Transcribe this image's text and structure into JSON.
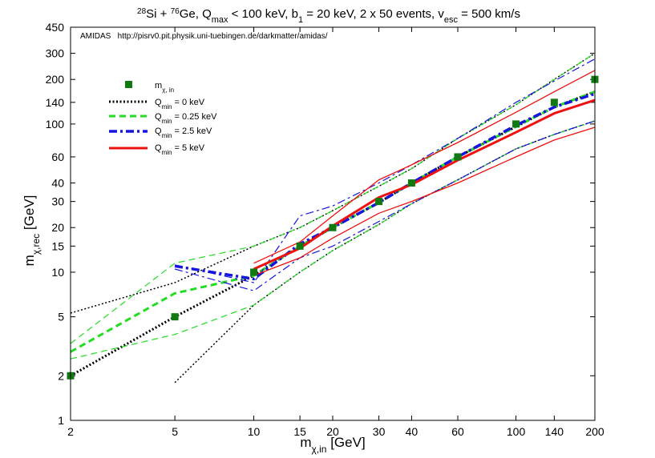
{
  "chart_data": {
    "type": "line",
    "title": {
      "iso1_mass": "28",
      "iso1_sym": "Si + ",
      "iso2_mass": "76",
      "iso2_sym": "Ge, Q",
      "qmax_sub": "max",
      "qmax_rest": " < 100 keV, b",
      "b_sub": "1",
      "b_rest": " = 20 keV, 2 x 50 events, v",
      "vesc_sub": "esc",
      "vesc_rest": " = 500 km/s"
    },
    "note": "AMIDAS   http://pisrv0.pit.physik.uni-tuebingen.de/darkmatter/amidas/",
    "xlabel": {
      "main": "m",
      "sub": "χ,in",
      "rest": " [GeV]"
    },
    "ylabel": {
      "main": "m",
      "sub": "χ,rec",
      "rest": " [GeV]"
    },
    "xscale": "log",
    "yscale": "log",
    "xlim": [
      2,
      200
    ],
    "ylim": [
      1,
      450
    ],
    "xticks": [
      2,
      5,
      10,
      15,
      20,
      30,
      40,
      60,
      100,
      140,
      200
    ],
    "xtick_labels": [
      "2",
      "5",
      "10",
      "15",
      "20",
      "30",
      "40",
      "60",
      "100",
      "140",
      "200"
    ],
    "yticks": [
      1,
      2,
      5,
      10,
      15,
      20,
      30,
      40,
      60,
      100,
      140,
      200,
      300,
      450
    ],
    "ytick_labels": [
      "1",
      "2",
      "5",
      "10",
      "15",
      "20",
      "30",
      "40",
      "60",
      "100",
      "140",
      "200",
      "300",
      "450"
    ],
    "legend_position": "top-left",
    "legend": [
      {
        "main": "m",
        "sub": "χ, in",
        "rest": ""
      },
      {
        "main": "Q",
        "sub": "min",
        "rest": " = 0 keV"
      },
      {
        "main": "Q",
        "sub": "min",
        "rest": " = 0.25 keV"
      },
      {
        "main": "Q",
        "sub": "min",
        "rest": " = 2.5 keV"
      },
      {
        "main": "Q",
        "sub": "min",
        "rest": " = 5 keV"
      }
    ],
    "input_points": {
      "color": "#107a10",
      "x": [
        2,
        5,
        10,
        15,
        20,
        30,
        40,
        60,
        100,
        140,
        200
      ],
      "y": [
        2,
        5,
        10,
        15,
        20,
        30,
        40,
        60,
        100,
        140,
        200
      ]
    },
    "series": [
      {
        "style": "dotted",
        "color": "#000000",
        "x": [
          2,
          5,
          10,
          15,
          20,
          30,
          40,
          60,
          100,
          140,
          200
        ],
        "median": [
          2,
          5,
          9.5,
          15,
          20,
          29.5,
          40,
          60,
          96,
          130,
          165
        ],
        "upper": [
          5.3,
          8.5,
          15,
          20,
          26,
          38,
          50,
          80,
          135,
          200,
          300
        ],
        "lower": [
          null,
          1.8,
          6,
          10,
          14,
          21,
          29,
          42,
          68,
          85,
          105
        ]
      },
      {
        "style": "dashed",
        "color": "#22dd22",
        "x": [
          2,
          5,
          10,
          15,
          20,
          30,
          40,
          60,
          100,
          140,
          200
        ],
        "median": [
          2.9,
          7.2,
          9.5,
          15,
          20,
          29.5,
          40,
          60,
          96,
          130,
          165
        ],
        "upper": [
          3.3,
          11.5,
          15,
          20,
          26,
          38,
          50,
          80,
          135,
          200,
          300
        ],
        "lower": [
          2.6,
          3.8,
          6,
          10,
          14,
          21,
          29,
          42,
          68,
          85,
          105
        ]
      },
      {
        "style": "dash-dot",
        "color": "#1515dd",
        "x": [
          5,
          10,
          15,
          20,
          30,
          40,
          60,
          100,
          140,
          200
        ],
        "median": [
          11,
          9,
          15.5,
          20,
          29.5,
          40,
          60,
          98,
          130,
          160
        ],
        "upper": [
          11.2,
          8.5,
          24,
          28,
          40,
          53,
          80,
          140,
          195,
          275
        ],
        "lower": [
          10.5,
          7.5,
          12.5,
          15,
          22,
          29,
          42,
          68,
          85,
          105
        ]
      },
      {
        "style": "solid",
        "color": "#ee1111",
        "x": [
          10,
          15,
          20,
          30,
          40,
          60,
          100,
          140,
          200
        ],
        "median": [
          10.5,
          14.5,
          20.5,
          32,
          39,
          57,
          88,
          118,
          145
        ],
        "upper": [
          11.5,
          16,
          24,
          42,
          53,
          75,
          120,
          165,
          230
        ],
        "lower": [
          9.5,
          12.5,
          17,
          25,
          30,
          40,
          60,
          78,
          95
        ]
      }
    ]
  }
}
